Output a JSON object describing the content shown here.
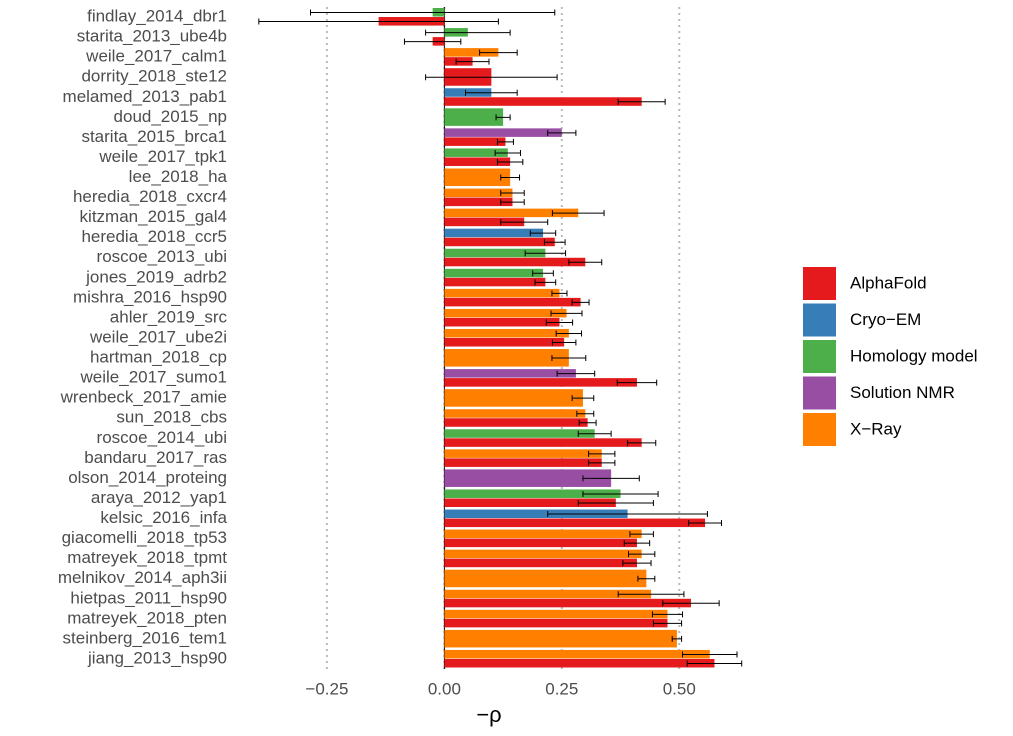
{
  "chart_data": {
    "type": "bar",
    "orientation": "horizontal",
    "x_label": "−ρ",
    "categories": [
      "findlay_2014_dbr1",
      "starita_2013_ube4b",
      "weile_2017_calm1",
      "dorrity_2018_ste12",
      "melamed_2013_pab1",
      "doud_2015_np",
      "starita_2015_brca1",
      "weile_2017_tpk1",
      "lee_2018_ha",
      "heredia_2018_cxcr4",
      "kitzman_2015_gal4",
      "heredia_2018_ccr5",
      "roscoe_2013_ubi",
      "jones_2019_adrb2",
      "mishra_2016_hsp90",
      "ahler_2019_src",
      "weile_2017_ube2i",
      "hartman_2018_cp",
      "weile_2017_sumo1",
      "wrenbeck_2017_amie",
      "sun_2018_cbs",
      "roscoe_2014_ubi",
      "bandaru_2017_ras",
      "olson_2014_proteing",
      "araya_2012_yap1",
      "kelsic_2016_infa",
      "giacomelli_2018_tp53",
      "matreyek_2018_tpmt",
      "melnikov_2014_aph3ii",
      "hietpas_2011_hsp90",
      "matreyek_2018_pten",
      "steinberg_2016_tem1",
      "jiang_2013_hsp90"
    ],
    "series": [
      {
        "name": "AlphaFold",
        "color": "#e41a1c",
        "values": [
          -0.14,
          -0.025,
          0.06,
          0.1,
          0.42,
          null,
          0.13,
          0.14,
          null,
          0.145,
          0.17,
          0.235,
          0.3,
          0.215,
          0.29,
          0.245,
          0.255,
          null,
          0.41,
          null,
          0.305,
          0.42,
          0.335,
          null,
          0.365,
          0.555,
          0.41,
          0.41,
          null,
          0.525,
          0.475,
          null,
          0.575
        ],
        "errors": [
          0.255,
          0.06,
          0.035,
          0.14,
          0.05,
          null,
          0.017,
          0.027,
          null,
          0.025,
          0.05,
          0.022,
          0.035,
          0.022,
          0.018,
          0.028,
          0.025,
          null,
          0.042,
          null,
          0.018,
          0.03,
          0.028,
          null,
          0.08,
          0.035,
          0.027,
          0.03,
          null,
          0.06,
          0.03,
          null,
          0.058
        ]
      },
      {
        "name": "Cryo−EM",
        "color": "#377eb8",
        "values": [
          null,
          null,
          null,
          null,
          0.1,
          null,
          null,
          null,
          null,
          null,
          null,
          0.21,
          null,
          null,
          null,
          null,
          null,
          null,
          null,
          null,
          null,
          null,
          null,
          null,
          null,
          0.39,
          null,
          null,
          null,
          null,
          null,
          null,
          null
        ],
        "errors": [
          null,
          null,
          null,
          null,
          0.055,
          null,
          null,
          null,
          null,
          null,
          null,
          0.027,
          null,
          null,
          null,
          null,
          null,
          null,
          null,
          null,
          null,
          null,
          null,
          null,
          null,
          0.17,
          null,
          null,
          null,
          null,
          null,
          null,
          null
        ]
      },
      {
        "name": "Homology model",
        "color": "#4daf4a",
        "values": [
          -0.025,
          0.05,
          null,
          null,
          null,
          0.125,
          null,
          0.135,
          null,
          null,
          null,
          null,
          0.215,
          0.21,
          null,
          null,
          null,
          null,
          null,
          null,
          null,
          0.32,
          null,
          null,
          0.375,
          null,
          null,
          null,
          null,
          null,
          null,
          null,
          null
        ],
        "errors": [
          0.26,
          0.09,
          null,
          null,
          null,
          0.015,
          null,
          0.027,
          null,
          null,
          null,
          null,
          0.043,
          0.022,
          null,
          null,
          null,
          null,
          null,
          null,
          null,
          0.035,
          null,
          null,
          0.08,
          null,
          null,
          null,
          null,
          null,
          null,
          null,
          null
        ]
      },
      {
        "name": "Solution NMR",
        "color": "#984ea3",
        "values": [
          null,
          null,
          null,
          null,
          null,
          null,
          0.25,
          null,
          null,
          null,
          null,
          null,
          null,
          null,
          null,
          null,
          null,
          null,
          0.28,
          null,
          null,
          null,
          null,
          0.355,
          null,
          null,
          null,
          null,
          null,
          null,
          null,
          null,
          null
        ],
        "errors": [
          null,
          null,
          null,
          null,
          null,
          null,
          0.03,
          null,
          null,
          null,
          null,
          null,
          null,
          null,
          null,
          null,
          null,
          null,
          0.04,
          null,
          null,
          null,
          null,
          0.06,
          null,
          null,
          null,
          null,
          null,
          null,
          null,
          null,
          null
        ]
      },
      {
        "name": "X−Ray",
        "color": "#ff7f00",
        "values": [
          null,
          null,
          0.115,
          null,
          null,
          null,
          null,
          null,
          0.14,
          0.145,
          0.285,
          null,
          null,
          null,
          0.245,
          0.26,
          0.265,
          0.265,
          null,
          0.295,
          0.3,
          null,
          0.335,
          null,
          null,
          null,
          0.42,
          0.42,
          0.43,
          0.44,
          0.475,
          0.495,
          0.565
        ],
        "errors": [
          null,
          null,
          0.04,
          null,
          null,
          null,
          null,
          null,
          0.02,
          0.025,
          0.055,
          null,
          null,
          null,
          0.016,
          0.033,
          0.027,
          0.036,
          null,
          0.023,
          0.018,
          null,
          0.028,
          null,
          null,
          null,
          0.025,
          0.028,
          0.018,
          0.07,
          0.032,
          0.01,
          0.058
        ]
      }
    ],
    "xlim": [
      -0.45,
      0.64
    ],
    "xticks": [
      {
        "value": -0.25,
        "label": "−0.25"
      },
      {
        "value": 0,
        "label": "0.00"
      },
      0.25,
      {
        "value": 0.5,
        "label": "0.50"
      }
    ],
    "grid": true,
    "legend": "right"
  }
}
